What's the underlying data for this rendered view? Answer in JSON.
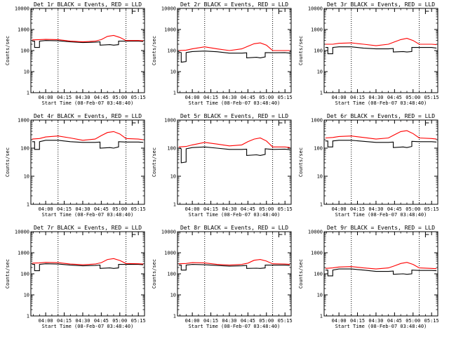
{
  "chart_data": [
    {
      "type": "line",
      "title": "Det 1r BLACK = Events, RED = LLD",
      "xlabel": "Start Time (08-Feb-07 03:48:40)",
      "ylabel": "Counts/sec",
      "y_scale": "log",
      "ylim": [
        1,
        10000
      ],
      "y_ticks": [
        "1",
        "10",
        "100",
        "1000",
        "10000"
      ],
      "x_ticks": [
        "04:00",
        "04:15",
        "04:30",
        "04:45",
        "05:00",
        "05:15"
      ],
      "series": [
        {
          "name": "Events",
          "color": "#000000",
          "x": [
            "03:49",
            "03:51",
            "03:51",
            "03:55",
            "03:55",
            "04:00",
            "04:10",
            "04:20",
            "04:30",
            "04:40",
            "04:44",
            "04:44",
            "04:52",
            "04:55",
            "04:59",
            "04:59",
            "05:05",
            "05:15",
            "05:19"
          ],
          "values": [
            280,
            280,
            140,
            140,
            280,
            300,
            290,
            260,
            240,
            250,
            260,
            180,
            190,
            180,
            190,
            280,
            280,
            280,
            270
          ]
        },
        {
          "name": "LLD",
          "color": "#ff0000",
          "x": [
            "03:49",
            "03:55",
            "04:00",
            "04:10",
            "04:20",
            "04:30",
            "04:40",
            "04:45",
            "04:50",
            "04:55",
            "05:00",
            "05:05",
            "05:15",
            "05:19"
          ],
          "values": [
            320,
            330,
            340,
            330,
            280,
            260,
            280,
            330,
            470,
            520,
            420,
            300,
            300,
            290
          ]
        }
      ]
    },
    {
      "type": "line",
      "title": "Det 2r BLACK = Events, RED = LLD",
      "xlabel": "",
      "ylabel": "",
      "y_scale": "log",
      "ylim": [
        1,
        10000
      ],
      "y_ticks": [
        "1",
        "10",
        "100",
        "1000",
        "10000"
      ],
      "x_ticks": [
        "04:00",
        "04:15",
        "04:30",
        "04:45",
        "05:00",
        "05:15"
      ],
      "series": [
        {
          "name": "Events",
          "color": "#000000",
          "x": [
            "03:49",
            "03:51",
            "03:51",
            "03:55",
            "03:55",
            "04:00",
            "04:10",
            "04:20",
            "04:30",
            "04:40",
            "04:44",
            "04:44",
            "04:52",
            "04:55",
            "04:59",
            "04:59",
            "05:05",
            "05:15",
            "05:19"
          ],
          "values": [
            85,
            80,
            28,
            30,
            80,
            90,
            95,
            88,
            75,
            75,
            78,
            45,
            48,
            45,
            50,
            80,
            78,
            80,
            75
          ]
        },
        {
          "name": "LLD",
          "color": "#ff0000",
          "x": [
            "03:49",
            "03:55",
            "04:00",
            "04:10",
            "04:20",
            "04:30",
            "04:40",
            "04:45",
            "04:50",
            "04:55",
            "05:00",
            "05:05",
            "05:15",
            "05:19"
          ],
          "values": [
            100,
            105,
            120,
            150,
            120,
            100,
            120,
            160,
            210,
            230,
            180,
            100,
            100,
            100
          ]
        }
      ]
    },
    {
      "type": "line",
      "title": "Det 3r BLACK = Events, RED = LLD",
      "xlabel": "",
      "ylabel": "",
      "y_scale": "log",
      "ylim": [
        1,
        10000
      ],
      "y_ticks": [
        "1",
        "10",
        "100",
        "1000",
        "10000"
      ],
      "x_ticks": [
        "04:00",
        "04:15",
        "04:30",
        "04:45",
        "05:00",
        "05:15"
      ],
      "series": [
        {
          "name": "Events",
          "color": "#000000",
          "x": [
            "03:49",
            "03:51",
            "03:51",
            "03:55",
            "03:55",
            "04:00",
            "04:10",
            "04:20",
            "04:30",
            "04:40",
            "04:44",
            "04:44",
            "04:52",
            "04:55",
            "04:59",
            "04:59",
            "05:05",
            "05:15",
            "05:19"
          ],
          "values": [
            140,
            140,
            70,
            70,
            140,
            150,
            150,
            130,
            120,
            120,
            125,
            85,
            90,
            85,
            90,
            140,
            140,
            140,
            130
          ]
        },
        {
          "name": "LLD",
          "color": "#ff0000",
          "x": [
            "03:49",
            "03:55",
            "04:00",
            "04:10",
            "04:20",
            "04:30",
            "04:40",
            "04:45",
            "04:50",
            "04:55",
            "05:00",
            "05:05",
            "05:15",
            "05:19"
          ],
          "values": [
            200,
            200,
            220,
            230,
            200,
            170,
            200,
            260,
            330,
            380,
            300,
            200,
            200,
            190
          ]
        }
      ]
    },
    {
      "type": "line",
      "title": "Det 4r BLACK = Events, RED = LLD",
      "xlabel": "",
      "ylabel": "",
      "y_scale": "log",
      "ylim": [
        1,
        1000
      ],
      "y_ticks": [
        "1",
        "10",
        "100",
        "1000"
      ],
      "x_ticks": [
        "04:00",
        "04:15",
        "04:30",
        "04:45",
        "05:00",
        "05:15"
      ],
      "series": [
        {
          "name": "Events",
          "color": "#000000",
          "x": [
            "03:49",
            "03:51",
            "03:51",
            "03:55",
            "03:55",
            "04:00",
            "04:10",
            "04:20",
            "04:30",
            "04:40",
            "04:44",
            "04:44",
            "04:52",
            "04:55",
            "04:59",
            "04:59",
            "05:05",
            "05:15",
            "05:19"
          ],
          "values": [
            170,
            170,
            90,
            90,
            170,
            190,
            190,
            170,
            160,
            160,
            165,
            100,
            105,
            100,
            110,
            170,
            165,
            165,
            160
          ]
        },
        {
          "name": "LLD",
          "color": "#ff0000",
          "x": [
            "03:49",
            "03:55",
            "04:00",
            "04:10",
            "04:20",
            "04:30",
            "04:40",
            "04:45",
            "04:50",
            "04:55",
            "05:00",
            "05:05",
            "05:15",
            "05:19"
          ],
          "values": [
            210,
            220,
            250,
            270,
            230,
            190,
            210,
            280,
            360,
            390,
            320,
            220,
            210,
            200
          ]
        }
      ]
    },
    {
      "type": "line",
      "title": "Det 5r BLACK = Events, RED = LLD",
      "xlabel": "",
      "ylabel": "",
      "y_scale": "log",
      "ylim": [
        1,
        1000
      ],
      "y_ticks": [
        "1",
        "10",
        "100",
        "1000"
      ],
      "x_ticks": [
        "04:00",
        "04:15",
        "04:30",
        "04:45",
        "05:00",
        "05:15"
      ],
      "series": [
        {
          "name": "Events",
          "color": "#000000",
          "x": [
            "03:49",
            "03:51",
            "03:51",
            "03:55",
            "03:55",
            "04:00",
            "04:10",
            "04:20",
            "04:30",
            "04:40",
            "04:44",
            "04:44",
            "04:52",
            "04:55",
            "04:59",
            "04:59",
            "05:05",
            "05:15",
            "05:19"
          ],
          "values": [
            100,
            95,
            30,
            32,
            95,
            105,
            110,
            100,
            90,
            90,
            92,
            55,
            58,
            55,
            60,
            95,
            90,
            92,
            88
          ]
        },
        {
          "name": "LLD",
          "color": "#ff0000",
          "x": [
            "03:49",
            "03:55",
            "04:00",
            "04:10",
            "04:20",
            "04:30",
            "04:40",
            "04:45",
            "04:50",
            "04:55",
            "05:00",
            "05:05",
            "05:15",
            "05:19"
          ],
          "values": [
            110,
            115,
            130,
            160,
            140,
            120,
            130,
            170,
            210,
            230,
            180,
            110,
            110,
            105
          ]
        }
      ]
    },
    {
      "type": "line",
      "title": "Det 6r BLACK = Events, RED = LLD",
      "xlabel": "",
      "ylabel": "",
      "y_scale": "log",
      "ylim": [
        1,
        1000
      ],
      "y_ticks": [
        "1",
        "10",
        "100",
        "1000"
      ],
      "x_ticks": [
        "04:00",
        "04:15",
        "04:30",
        "04:45",
        "05:00",
        "05:15"
      ],
      "series": [
        {
          "name": "Events",
          "color": "#000000",
          "x": [
            "03:49",
            "03:51",
            "03:51",
            "03:55",
            "03:55",
            "04:00",
            "04:10",
            "04:20",
            "04:30",
            "04:40",
            "04:44",
            "04:44",
            "04:52",
            "04:55",
            "04:59",
            "04:59",
            "05:05",
            "05:15",
            "05:19"
          ],
          "values": [
            180,
            180,
            110,
            110,
            180,
            190,
            190,
            175,
            160,
            160,
            165,
            105,
            110,
            105,
            115,
            175,
            170,
            170,
            165
          ]
        },
        {
          "name": "LLD",
          "color": "#ff0000",
          "x": [
            "03:49",
            "03:55",
            "04:00",
            "04:10",
            "04:20",
            "04:30",
            "04:40",
            "04:45",
            "04:50",
            "04:55",
            "05:00",
            "05:05",
            "05:15",
            "05:19"
          ],
          "values": [
            230,
            240,
            260,
            270,
            240,
            210,
            230,
            300,
            390,
            420,
            330,
            230,
            220,
            210
          ]
        }
      ]
    },
    {
      "type": "line",
      "title": "Det 7r BLACK = Events, RED = LLD",
      "xlabel": "",
      "ylabel": "",
      "y_scale": "log",
      "ylim": [
        1,
        10000
      ],
      "y_ticks": [
        "1",
        "10",
        "100",
        "1000",
        "10000"
      ],
      "x_ticks": [
        "04:00",
        "04:15",
        "04:30",
        "04:45",
        "05:00",
        "05:15"
      ],
      "series": [
        {
          "name": "Events",
          "color": "#000000",
          "x": [
            "03:49",
            "03:51",
            "03:51",
            "03:55",
            "03:55",
            "04:00",
            "04:10",
            "04:20",
            "04:30",
            "04:40",
            "04:44",
            "04:44",
            "04:52",
            "04:55",
            "04:59",
            "04:59",
            "05:05",
            "05:15",
            "05:19"
          ],
          "values": [
            280,
            280,
            140,
            140,
            280,
            300,
            290,
            260,
            240,
            250,
            260,
            180,
            190,
            180,
            190,
            280,
            280,
            280,
            270
          ]
        },
        {
          "name": "LLD",
          "color": "#ff0000",
          "x": [
            "03:49",
            "03:55",
            "04:00",
            "04:10",
            "04:20",
            "04:30",
            "04:40",
            "04:45",
            "04:50",
            "04:55",
            "05:00",
            "05:05",
            "05:15",
            "05:19"
          ],
          "values": [
            320,
            330,
            350,
            340,
            290,
            270,
            290,
            340,
            480,
            530,
            430,
            310,
            300,
            290
          ]
        }
      ]
    },
    {
      "type": "line",
      "title": "Det 8r BLACK = Events, RED = LLD",
      "xlabel": "",
      "ylabel": "",
      "y_scale": "log",
      "ylim": [
        1,
        10000
      ],
      "y_ticks": [
        "1",
        "10",
        "100",
        "1000",
        "10000"
      ],
      "x_ticks": [
        "04:00",
        "04:15",
        "04:30",
        "04:45",
        "05:00",
        "05:15"
      ],
      "series": [
        {
          "name": "Events",
          "color": "#000000",
          "x": [
            "03:49",
            "03:51",
            "03:51",
            "03:55",
            "03:55",
            "04:00",
            "04:10",
            "04:20",
            "04:30",
            "04:40",
            "04:44",
            "04:44",
            "04:52",
            "04:55",
            "04:59",
            "04:59",
            "05:05",
            "05:15",
            "05:19"
          ],
          "values": [
            260,
            260,
            150,
            150,
            260,
            280,
            270,
            250,
            230,
            240,
            250,
            180,
            185,
            180,
            190,
            260,
            260,
            260,
            250
          ]
        },
        {
          "name": "LLD",
          "color": "#ff0000",
          "x": [
            "03:49",
            "03:55",
            "04:00",
            "04:10",
            "04:20",
            "04:30",
            "04:40",
            "04:45",
            "04:50",
            "04:55",
            "05:00",
            "05:05",
            "05:15",
            "05:19"
          ],
          "values": [
            300,
            310,
            340,
            330,
            280,
            260,
            280,
            320,
            440,
            480,
            400,
            300,
            290,
            280
          ]
        }
      ]
    },
    {
      "type": "line",
      "title": "Det 9r BLACK = Events, RED = LLD",
      "xlabel": "",
      "ylabel": "",
      "y_scale": "log",
      "ylim": [
        1,
        10000
      ],
      "y_ticks": [
        "1",
        "10",
        "100",
        "1000",
        "10000"
      ],
      "x_ticks": [
        "04:00",
        "04:15",
        "04:30",
        "04:45",
        "05:00",
        "05:15"
      ],
      "series": [
        {
          "name": "Events",
          "color": "#000000",
          "x": [
            "03:49",
            "03:51",
            "03:51",
            "03:55",
            "03:55",
            "04:00",
            "04:10",
            "04:20",
            "04:30",
            "04:40",
            "04:44",
            "04:44",
            "04:52",
            "04:55",
            "04:59",
            "04:59",
            "05:05",
            "05:15",
            "05:19"
          ],
          "values": [
            150,
            150,
            80,
            80,
            150,
            170,
            170,
            150,
            130,
            130,
            135,
            95,
            100,
            95,
            100,
            150,
            145,
            145,
            140
          ]
        },
        {
          "name": "LLD",
          "color": "#ff0000",
          "x": [
            "03:49",
            "03:55",
            "04:00",
            "04:10",
            "04:20",
            "04:30",
            "04:40",
            "04:45",
            "04:50",
            "04:55",
            "05:00",
            "05:05",
            "05:15",
            "05:19"
          ],
          "values": [
            180,
            190,
            210,
            220,
            190,
            170,
            190,
            240,
            310,
            350,
            280,
            190,
            180,
            175
          ]
        }
      ]
    }
  ],
  "panels": {
    "xlabel": "Start Time (08-Feb-07 03:48:40)",
    "ylabel": "Counts/sec",
    "x_range": [
      "03:48",
      "05:20"
    ],
    "dotted_lines_at": [
      "04:10",
      "05:05"
    ],
    "marker_at": "05:10"
  }
}
